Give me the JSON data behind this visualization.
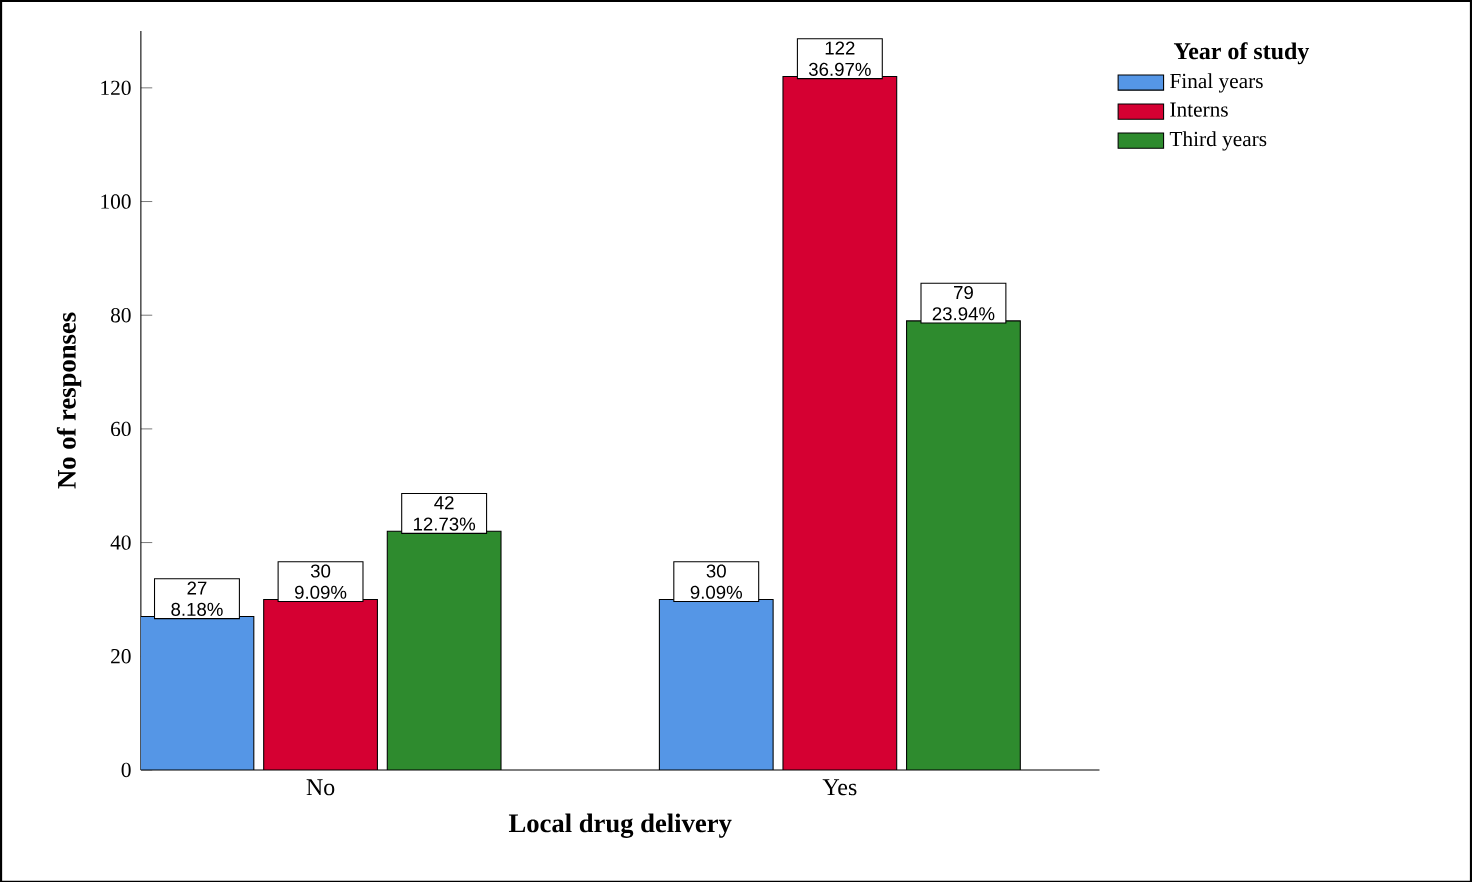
{
  "chart_data": {
    "type": "bar",
    "xlabel": "Local drug delivery",
    "ylabel": "No of responses",
    "legend_title": "Year of study",
    "categories": [
      "No",
      "Yes"
    ],
    "series": [
      {
        "name": "Final years",
        "color": "#5596e6",
        "values": [
          27,
          30
        ],
        "value_labels": [
          "27 8.18%",
          "30 9.09%"
        ]
      },
      {
        "name": "Interns",
        "color": "#d50032",
        "values": [
          30,
          122
        ],
        "value_labels": [
          "30 9.09%",
          "122 36.97%"
        ]
      },
      {
        "name": "Third years",
        "color": "#2e8b2e",
        "values": [
          42,
          79
        ],
        "value_labels": [
          "42 12.73%",
          "79 23.94%"
        ]
      }
    ],
    "ylim": [
      0,
      130
    ],
    "yticks": [
      0,
      20,
      40,
      60,
      80,
      100,
      120
    ],
    "legend": "right",
    "grid": false
  }
}
